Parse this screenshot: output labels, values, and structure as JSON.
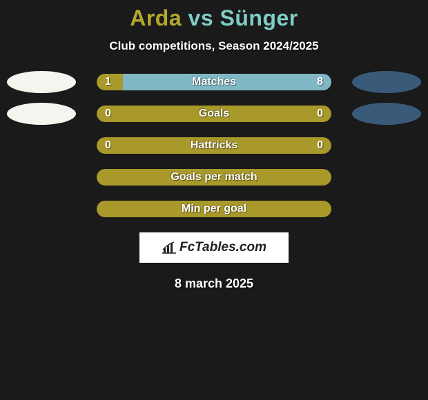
{
  "background_color": "#1a1a1a",
  "title": {
    "left_name": "Arda",
    "vs": " vs ",
    "right_name": "Sünger",
    "left_color": "#b5a82e",
    "right_color": "#7fcdc4",
    "font_size": 32
  },
  "subtitle": "Club competitions, Season 2024/2025",
  "subtitle_fontsize": 17,
  "ellipses": {
    "left_color": "#f5f5f0",
    "right_color": "#3a5a7a",
    "width": 100,
    "height": 32
  },
  "bar_track_width": 340,
  "bar_track_height": 24,
  "ellipse_rows_shown": 2,
  "stats": [
    {
      "label": "Matches",
      "left_value": "1",
      "right_value": "8",
      "left_num": 1,
      "right_num": 8,
      "left_color": "#a8992a",
      "right_color": "#7fb8c4",
      "show_values": true
    },
    {
      "label": "Goals",
      "left_value": "0",
      "right_value": "0",
      "left_num": 0,
      "right_num": 0,
      "left_color": "#a8992a",
      "right_color": "#7fb8c4",
      "show_values": true,
      "full_fill": "#a8992a"
    },
    {
      "label": "Hattricks",
      "left_value": "0",
      "right_value": "0",
      "left_num": 0,
      "right_num": 0,
      "left_color": "#a8992a",
      "right_color": "#7fb8c4",
      "show_values": true,
      "full_fill": "#a8992a"
    },
    {
      "label": "Goals per match",
      "left_value": "",
      "right_value": "",
      "left_num": 0,
      "right_num": 0,
      "left_color": "#a8992a",
      "right_color": "#7fb8c4",
      "show_values": false,
      "full_fill": "#a8992a"
    },
    {
      "label": "Min per goal",
      "left_value": "",
      "right_value": "",
      "left_num": 0,
      "right_num": 0,
      "left_color": "#a8992a",
      "right_color": "#7fb8c4",
      "show_values": false,
      "full_fill": "#a8992a"
    }
  ],
  "logo": {
    "brand_text": "FcTables.com",
    "bg_color": "#ffffff",
    "text_color": "#222222",
    "icon_color": "#222222"
  },
  "date": "8 march 2025",
  "label_text_color": "#ffffff",
  "label_fontsize": 16
}
